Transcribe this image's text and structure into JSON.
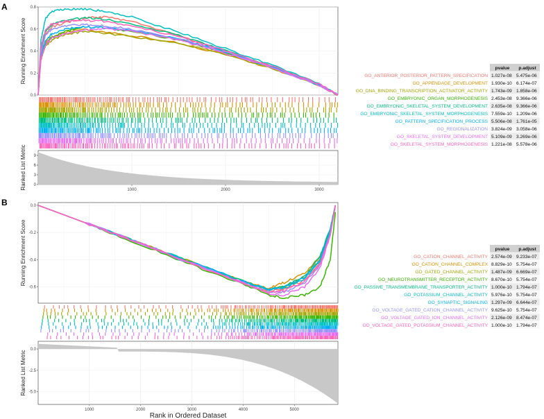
{
  "chart_data": [
    {
      "panel": "A",
      "type": "line",
      "xlabel": "",
      "ylabel_top": "Running Enrichment Score",
      "ylabel_bottom": "Ranked List Metric",
      "xlim": [
        0,
        3200
      ],
      "xticks": [
        1000,
        2000,
        3000
      ],
      "es_ylim": [
        0,
        0.8
      ],
      "es_yticks": [
        0.0,
        0.2,
        0.4,
        0.6,
        0.8
      ],
      "metric_ylim": [
        0,
        10.5
      ],
      "metric_yticks": [
        0,
        3,
        6,
        9
      ],
      "metric_curve": {
        "start": 10,
        "k": 0.0012,
        "end": 0.6
      },
      "table_headers": [
        "pvalue",
        "p.adjust"
      ],
      "series": [
        {
          "name": "GO_ANTERIOR_POSTERIOR_PATTERN_SPECIFICATION",
          "color": "#F8766D",
          "pvalue": "1.027e-08",
          "padjust": "5.475e-06",
          "x": [
            0,
            30,
            80,
            150,
            300,
            500,
            700,
            1000,
            1500,
            2000,
            2500,
            3000,
            3200
          ],
          "y": [
            0,
            0.38,
            0.55,
            0.62,
            0.66,
            0.7,
            0.71,
            0.67,
            0.54,
            0.4,
            0.26,
            0.1,
            0.0
          ]
        },
        {
          "name": "GO_APPENDAGE_DEVELOPMENT",
          "color": "#D89000",
          "pvalue": "1.930e-10",
          "padjust": "6.174e-07",
          "x": [
            0,
            30,
            80,
            150,
            300,
            500,
            700,
            1000,
            1500,
            2000,
            2500,
            3000,
            3200
          ],
          "y": [
            0,
            0.35,
            0.48,
            0.53,
            0.57,
            0.6,
            0.57,
            0.54,
            0.47,
            0.37,
            0.24,
            0.09,
            0.0
          ]
        },
        {
          "name": "GO_DNA_BINDING_TRANSCRIPTION_ACTIVATOR_ACTIVITY",
          "color": "#A3A500",
          "pvalue": "1.743e-09",
          "padjust": "1.858e-06",
          "x": [
            0,
            30,
            80,
            150,
            300,
            500,
            700,
            1000,
            1500,
            2000,
            2500,
            3000,
            3200
          ],
          "y": [
            0,
            0.32,
            0.45,
            0.5,
            0.55,
            0.58,
            0.56,
            0.53,
            0.47,
            0.37,
            0.24,
            0.09,
            0.0
          ]
        },
        {
          "name": "GO_EMBRYONIC_ORGAN_MORPHOGENESIS",
          "color": "#39B600",
          "pvalue": "2.453e-08",
          "padjust": "9.366e-06",
          "x": [
            0,
            30,
            80,
            150,
            300,
            500,
            700,
            1000,
            1500,
            2000,
            2500,
            3000,
            3200
          ],
          "y": [
            0,
            0.34,
            0.47,
            0.53,
            0.58,
            0.62,
            0.61,
            0.58,
            0.5,
            0.38,
            0.25,
            0.09,
            0.0
          ]
        },
        {
          "name": "GO_EMBRYONIC_SKELETAL_SYSTEM_DEVELOPMENT",
          "color": "#00BF7D",
          "pvalue": "2.635e-08",
          "padjust": "9.366e-06",
          "x": [
            0,
            30,
            80,
            150,
            300,
            500,
            700,
            1000,
            1500,
            2000,
            2500,
            3000,
            3200
          ],
          "y": [
            0,
            0.42,
            0.58,
            0.64,
            0.68,
            0.7,
            0.69,
            0.65,
            0.54,
            0.4,
            0.26,
            0.1,
            0.0
          ]
        },
        {
          "name": "GO_EMBRYONIC_SKELETAL_SYSTEM_MORPHOGENESIS",
          "color": "#00BFC4",
          "pvalue": "7.559e-10",
          "padjust": "1.209e-06",
          "x": [
            0,
            30,
            80,
            150,
            300,
            500,
            700,
            1000,
            1500,
            2000,
            2500,
            3000,
            3200
          ],
          "y": [
            0,
            0.5,
            0.7,
            0.76,
            0.78,
            0.78,
            0.76,
            0.71,
            0.57,
            0.42,
            0.27,
            0.1,
            0.0
          ]
        },
        {
          "name": "GO_PATTERN_SPECIFICATION_PROCESS",
          "color": "#00B0F6",
          "pvalue": "5.506e-08",
          "padjust": "1.761e-05",
          "x": [
            0,
            30,
            80,
            150,
            300,
            500,
            700,
            1000,
            1500,
            2000,
            2500,
            3000,
            3200
          ],
          "y": [
            0,
            0.36,
            0.5,
            0.56,
            0.6,
            0.62,
            0.61,
            0.59,
            0.51,
            0.39,
            0.25,
            0.09,
            0.0
          ]
        },
        {
          "name": "GO_REGIONALIZATION",
          "color": "#9590FF",
          "pvalue": "3.824e-09",
          "padjust": "3.058e-06",
          "x": [
            0,
            30,
            80,
            150,
            300,
            500,
            700,
            1000,
            1500,
            2000,
            2500,
            3000,
            3200
          ],
          "y": [
            0,
            0.4,
            0.55,
            0.6,
            0.63,
            0.64,
            0.63,
            0.6,
            0.51,
            0.39,
            0.25,
            0.09,
            0.0
          ]
        },
        {
          "name": "GO_SKELETAL_SYSTEM_DEVELOPMENT",
          "color": "#E76BF3",
          "pvalue": "5.109e-09",
          "padjust": "3.269e-06",
          "x": [
            0,
            30,
            80,
            150,
            300,
            500,
            700,
            1000,
            1500,
            2000,
            2500,
            3000,
            3200
          ],
          "y": [
            0,
            0.33,
            0.46,
            0.52,
            0.56,
            0.59,
            0.6,
            0.58,
            0.5,
            0.38,
            0.25,
            0.09,
            0.0
          ]
        },
        {
          "name": "GO_SKELETAL_SYSTEM_MORPHOGENESIS",
          "color": "#FF62BC",
          "pvalue": "1.221e-08",
          "padjust": "5.578e-06",
          "x": [
            0,
            30,
            80,
            150,
            300,
            500,
            700,
            1000,
            1500,
            2000,
            2500,
            3000,
            3200
          ],
          "y": [
            0,
            0.45,
            0.6,
            0.65,
            0.67,
            0.68,
            0.67,
            0.63,
            0.53,
            0.4,
            0.26,
            0.1,
            0.0
          ]
        }
      ]
    },
    {
      "panel": "B",
      "type": "line",
      "xlabel": "Rank in Ordered Dataset",
      "ylabel_top": "Running Enrichment Score",
      "ylabel_bottom": "Ranked List Metric",
      "xlim": [
        0,
        5850
      ],
      "xticks": [
        1000,
        2000,
        3000,
        4000,
        5000
      ],
      "es_ylim": [
        -0.72,
        0.02
      ],
      "es_yticks": [
        -0.6,
        -0.4,
        -0.2,
        0.0
      ],
      "metric_ylim": [
        -6.5,
        0.9
      ],
      "metric_yticks": [
        -5.0,
        -2.5,
        0.0
      ],
      "metric_curve": {
        "start": 0.6,
        "step_at": 1560,
        "step_to": -0.3,
        "end": -6.4
      },
      "table_headers": [
        "pvalue",
        "p.adjust"
      ],
      "series": [
        {
          "name": "GO_CATION_CHANNEL_ACTIVITY",
          "color": "#F8766D",
          "pvalue": "2.574e-09",
          "padjust": "9.233e-07",
          "x": [
            0,
            1000,
            2000,
            3000,
            4000,
            4500,
            4800,
            5200,
            5500,
            5700,
            5800
          ],
          "y": [
            0,
            -0.14,
            -0.28,
            -0.42,
            -0.56,
            -0.63,
            -0.62,
            -0.55,
            -0.42,
            -0.2,
            0.0
          ]
        },
        {
          "name": "GO_CATION_CHANNEL_COMPLEX",
          "color": "#D89000",
          "pvalue": "8.829e-10",
          "padjust": "5.754e-07",
          "x": [
            0,
            1000,
            2000,
            3000,
            4000,
            4500,
            4800,
            5200,
            5500,
            5700,
            5800
          ],
          "y": [
            0,
            -0.14,
            -0.28,
            -0.42,
            -0.56,
            -0.61,
            -0.57,
            -0.5,
            -0.38,
            -0.18,
            0.0
          ]
        },
        {
          "name": "GO_GATED_CHANNEL_ACTIVITY",
          "color": "#A3A500",
          "pvalue": "1.487e-09",
          "padjust": "6.669e-07",
          "x": [
            0,
            1000,
            2000,
            3000,
            4000,
            4500,
            4800,
            5200,
            5500,
            5700,
            5800
          ],
          "y": [
            0,
            -0.14,
            -0.28,
            -0.42,
            -0.56,
            -0.62,
            -0.6,
            -0.53,
            -0.4,
            -0.19,
            0.0
          ]
        },
        {
          "name": "GO_NEUROTRANSMITTER_RECEPTOR_ACTIVITY",
          "color": "#39B600",
          "pvalue": "8.670e-10",
          "padjust": "5.754e-07",
          "x": [
            0,
            1000,
            2000,
            3000,
            4000,
            4500,
            4800,
            5200,
            5500,
            5700,
            5800
          ],
          "y": [
            0,
            -0.14,
            -0.29,
            -0.44,
            -0.58,
            -0.66,
            -0.68,
            -0.66,
            -0.6,
            -0.4,
            -0.05
          ]
        },
        {
          "name": "GO_PASSIVE_TRANSMEMBRANE_TRANSPORTER_ACTIVITY",
          "color": "#00BF7D",
          "pvalue": "1.000e-10",
          "padjust": "1.794e-07",
          "x": [
            0,
            1000,
            2000,
            3000,
            4000,
            4500,
            4800,
            5200,
            5500,
            5700,
            5800
          ],
          "y": [
            0,
            -0.14,
            -0.28,
            -0.42,
            -0.56,
            -0.62,
            -0.6,
            -0.52,
            -0.38,
            -0.17,
            0.0
          ]
        },
        {
          "name": "GO_POTASSIUM_CHANNEL_ACTIVITY",
          "color": "#00BFC4",
          "pvalue": "5.976e-10",
          "padjust": "5.754e-07",
          "x": [
            0,
            1000,
            2000,
            3000,
            4000,
            4500,
            4800,
            5200,
            5500,
            5700,
            5800
          ],
          "y": [
            0,
            -0.14,
            -0.28,
            -0.42,
            -0.56,
            -0.62,
            -0.61,
            -0.54,
            -0.41,
            -0.2,
            0.0
          ]
        },
        {
          "name": "GO_SYNAPTIC_SIGNALING",
          "color": "#00B0F6",
          "pvalue": "1.297e-09",
          "padjust": "6.644e-07",
          "x": [
            0,
            1000,
            2000,
            3000,
            4000,
            4500,
            4800,
            5200,
            5500,
            5700,
            5800
          ],
          "y": [
            0,
            -0.14,
            -0.28,
            -0.42,
            -0.56,
            -0.62,
            -0.6,
            -0.53,
            -0.4,
            -0.18,
            0.0
          ]
        },
        {
          "name": "GO_VOLTAGE_GATED_CATION_CHANNEL_ACTIVITY",
          "color": "#9590FF",
          "pvalue": "9.625e-10",
          "padjust": "5.754e-07",
          "x": [
            0,
            1000,
            2000,
            3000,
            4000,
            4500,
            4800,
            5200,
            5500,
            5700,
            5800
          ],
          "y": [
            0,
            -0.14,
            -0.28,
            -0.43,
            -0.57,
            -0.64,
            -0.64,
            -0.57,
            -0.44,
            -0.21,
            0.0
          ]
        },
        {
          "name": "GO_VOLTAGE_GATED_ION_CHANNEL_ACTIVITY",
          "color": "#E76BF3",
          "pvalue": "2.126e-09",
          "padjust": "8.474e-07",
          "x": [
            0,
            1000,
            2000,
            3000,
            4000,
            4500,
            4800,
            5200,
            5500,
            5700,
            5800
          ],
          "y": [
            0,
            -0.14,
            -0.28,
            -0.43,
            -0.57,
            -0.65,
            -0.66,
            -0.6,
            -0.46,
            -0.22,
            0.0
          ]
        },
        {
          "name": "GO_VOLTAGE_GATED_POTASSIUM_CHANNEL_ACTIVITY",
          "color": "#FF62BC",
          "pvalue": "1.000e-10",
          "padjust": "1.794e-07",
          "x": [
            0,
            1000,
            2000,
            3000,
            4000,
            4500,
            4800,
            5200,
            5500,
            5700,
            5800
          ],
          "y": [
            0,
            -0.14,
            -0.28,
            -0.43,
            -0.57,
            -0.64,
            -0.63,
            -0.56,
            -0.43,
            -0.21,
            0.0
          ]
        }
      ]
    }
  ]
}
